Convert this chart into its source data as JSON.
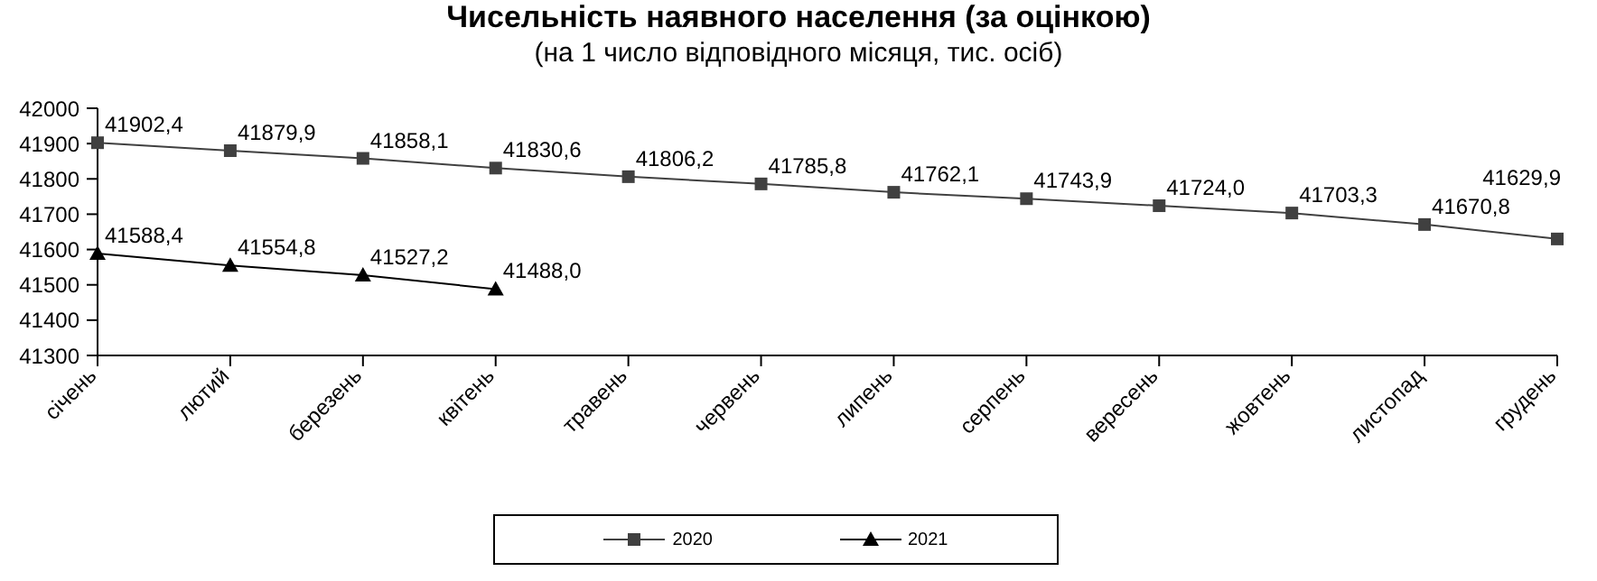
{
  "chart_data": {
    "type": "line",
    "title": "Чисельність наявного населення (за оцінкою)",
    "subtitle": "(на 1 число відповідного місяця, тис. осіб)",
    "categories": [
      "січень",
      "лютий",
      "березень",
      "квітень",
      "травень",
      "червень",
      "липень",
      "серпень",
      "вересень",
      "жовтень",
      "листопад",
      "грудень"
    ],
    "series": [
      {
        "name": "2020",
        "color": "#404040",
        "marker": "square",
        "values": [
          41902.4,
          41879.9,
          41858.1,
          41830.6,
          41806.2,
          41785.8,
          41762.1,
          41743.9,
          41724.0,
          41703.3,
          41670.8,
          41629.9
        ],
        "value_labels": [
          "41902,4",
          "41879,9",
          "41858,1",
          "41830,6",
          "41806,2",
          "41785,8",
          "41762,1",
          "41743,9",
          "41724,0",
          "41703,3",
          "41670,8",
          "41629,9"
        ]
      },
      {
        "name": "2021",
        "color": "#000000",
        "marker": "triangle",
        "values": [
          41588.4,
          41554.8,
          41527.2,
          41488.0,
          null,
          null,
          null,
          null,
          null,
          null,
          null,
          null
        ],
        "value_labels": [
          "41588,4",
          "41554,8",
          "41527,2",
          "41488,0",
          null,
          null,
          null,
          null,
          null,
          null,
          null,
          null
        ]
      }
    ],
    "ylim": [
      41300,
      42000
    ],
    "yticks": [
      41300,
      41400,
      41500,
      41600,
      41700,
      41800,
      41900,
      42000
    ],
    "grid": false,
    "legend": "bottom",
    "line_style": "solid"
  }
}
